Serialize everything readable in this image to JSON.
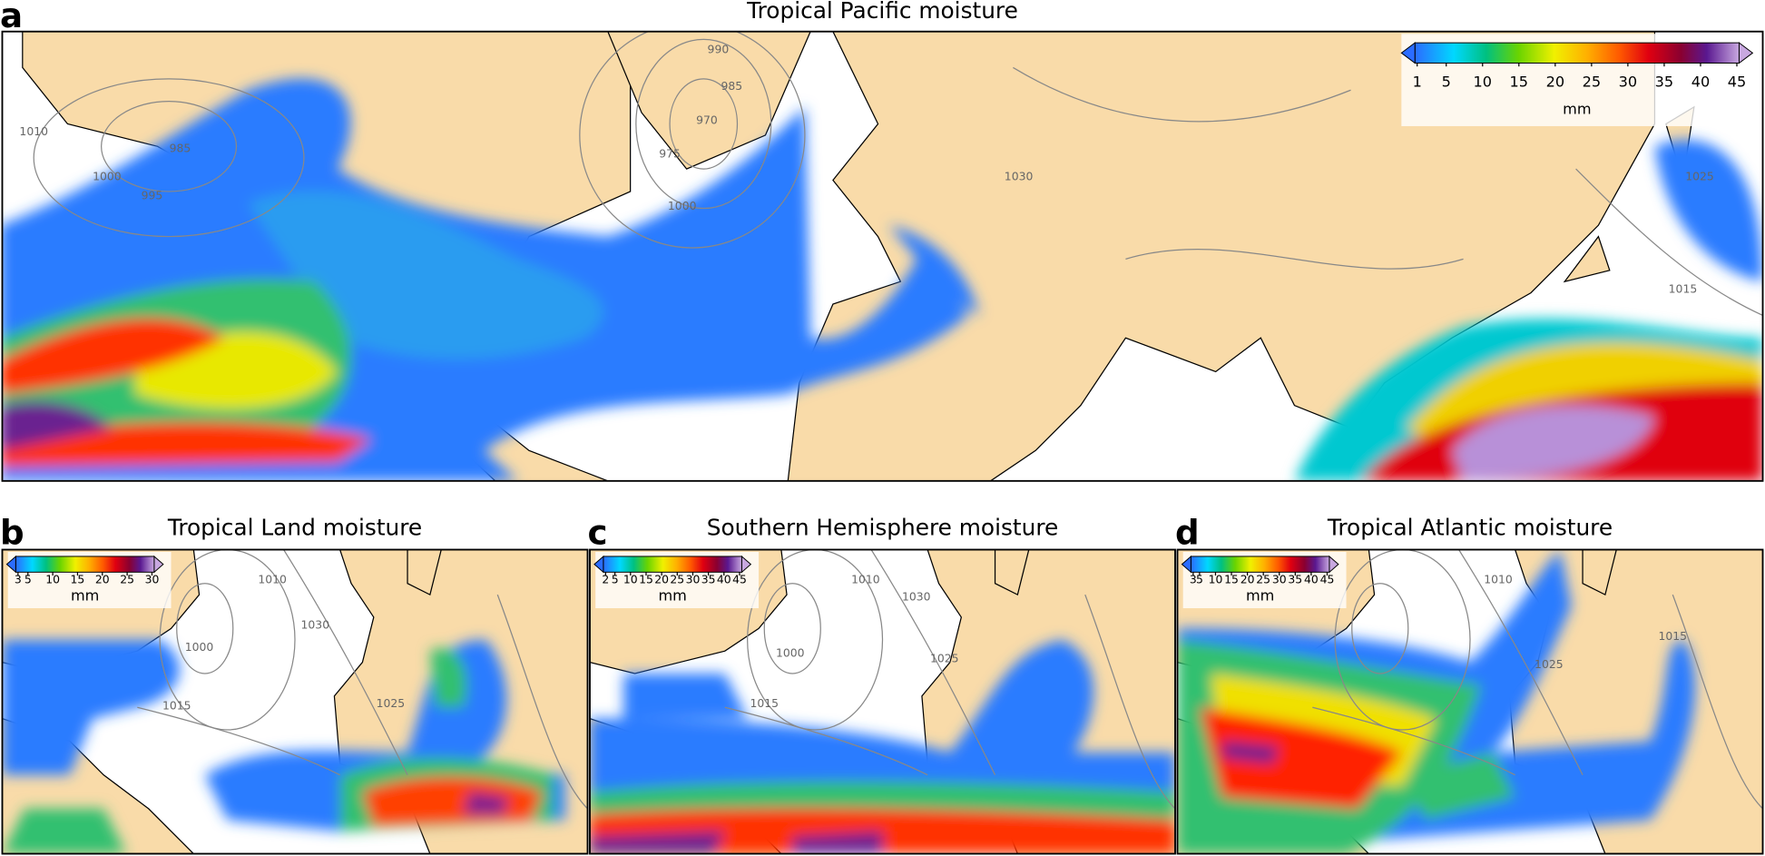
{
  "panels": [
    {
      "label": "a",
      "title": "Tropical Pacific moisture",
      "colorbar": {
        "ticks": [
          1,
          5,
          10,
          15,
          20,
          25,
          30,
          35,
          40,
          45
        ],
        "unit": "mm"
      },
      "contour_labels": [
        990,
        985,
        970,
        975,
        1000,
        985,
        1000,
        995,
        1010,
        1025,
        1015,
        1030
      ]
    },
    {
      "label": "b",
      "title": "Tropical Land moisture",
      "colorbar": {
        "ticks": [
          3,
          5,
          10,
          15,
          20,
          25,
          30
        ],
        "unit": "mm"
      },
      "contour_labels": [
        1030,
        1025,
        1015,
        1000,
        1010
      ]
    },
    {
      "label": "c",
      "title": "Southern Hemisphere moisture",
      "colorbar": {
        "ticks": [
          2,
          5,
          10,
          15,
          20,
          25,
          30,
          35,
          40,
          45
        ],
        "unit": "mm"
      },
      "contour_labels": [
        1030,
        1025,
        1015,
        1000,
        1010
      ]
    },
    {
      "label": "d",
      "title": "Tropical Atlantic moisture",
      "colorbar": {
        "ticks": [
          3,
          5,
          10,
          15,
          20,
          25,
          30,
          35,
          40,
          45
        ],
        "unit": "mm"
      },
      "contour_labels": [
        1025,
        1015,
        1010
      ]
    }
  ]
}
